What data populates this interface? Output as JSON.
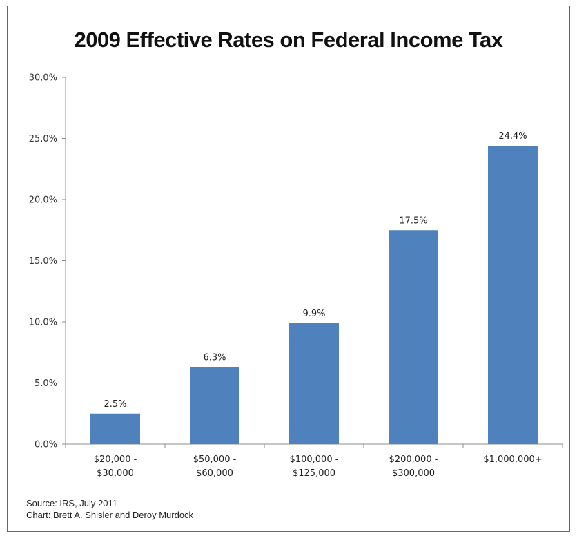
{
  "chart_data": {
    "type": "bar",
    "title": "2009 Effective Rates on Federal Income Tax",
    "categories": [
      [
        "$20,000 -",
        "$30,000"
      ],
      [
        "$50,000 -",
        "$60,000"
      ],
      [
        "$100,000 -",
        "$125,000"
      ],
      [
        "$200,000 -",
        "$300,000"
      ],
      [
        "$1,000,000+"
      ]
    ],
    "values": [
      2.5,
      6.3,
      9.9,
      17.5,
      24.4
    ],
    "data_labels": [
      "2.5%",
      "6.3%",
      "9.9%",
      "17.5%",
      "24.4%"
    ],
    "ylim": [
      0,
      30
    ],
    "yticks": [
      0,
      5,
      10,
      15,
      20,
      25,
      30
    ],
    "ytick_labels": [
      "0.0%",
      "5.0%",
      "10.0%",
      "15.0%",
      "20.0%",
      "25.0%",
      "30.0%"
    ],
    "xlabel": "",
    "ylabel": "",
    "grid": false,
    "bar_color": "#4f81bd"
  },
  "footer": {
    "source": "Source: IRS, July 2011",
    "credit": "Chart: Brett A. Shisler and Deroy Murdock"
  }
}
